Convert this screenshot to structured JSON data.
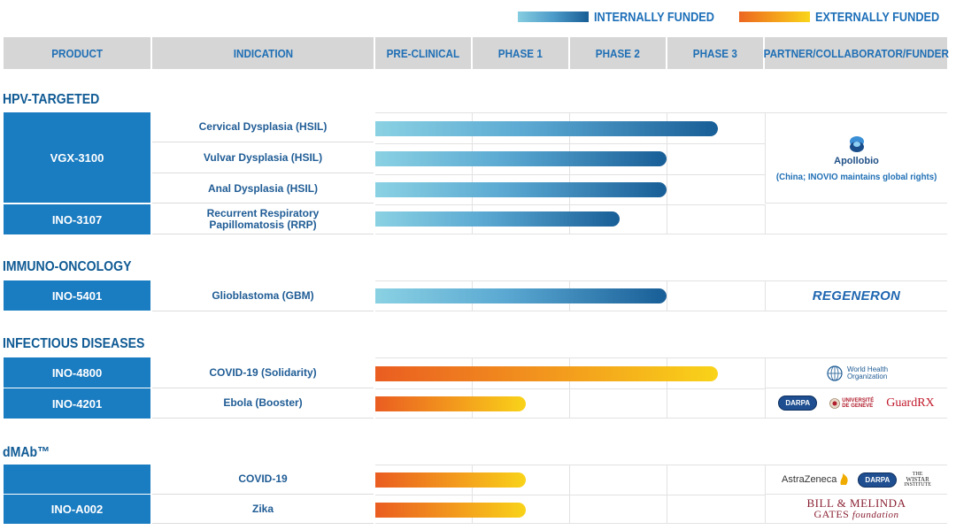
{
  "legend": {
    "internal": {
      "label": "INTERNALLY FUNDED",
      "color_start": "#86cde0",
      "color_end": "#175d95"
    },
    "external": {
      "label": "EXTERNALLY FUNDED",
      "color_start": "#ec6620",
      "color_end": "#f9d51a"
    }
  },
  "headers": {
    "product": "PRODUCT",
    "indication": "INDICATION",
    "preclinical": "PRE-CLINICAL",
    "phase1": "PHASE 1",
    "phase2": "PHASE 2",
    "phase3": "PHASE 3",
    "partner": "PARTNER/COLLABORATOR/FUNDER"
  },
  "sections": {
    "hpv": {
      "title": "HPV-TARGETED",
      "products": [
        "VGX-3100",
        "INO-3107"
      ],
      "rows": [
        {
          "indication": "Cervical Dysplasia (HSIL)",
          "funding": "internal",
          "progress_phases": 3.5
        },
        {
          "indication": "Vulvar Dysplasia (HSIL)",
          "funding": "internal",
          "progress_phases": 3.0
        },
        {
          "indication": "Anal Dysplasia (HSIL)",
          "funding": "internal",
          "progress_phases": 3.0
        },
        {
          "indication_line1": "Recurrent Respiratory",
          "indication_line2": "Papillomatosis (RRP)",
          "funding": "internal",
          "progress_phases": 2.5
        }
      ],
      "partner_name": "Apollobio",
      "partner_note": "(China; INOVIO maintains global rights)"
    },
    "io": {
      "title": "IMMUNO-ONCOLOGY",
      "product": "INO-5401",
      "indication": "Glioblastoma (GBM)",
      "funding": "internal",
      "progress_phases": 3.0,
      "partner": "REGENERON"
    },
    "id": {
      "title": "INFECTIOUS DISEASES",
      "rows": [
        {
          "product": "INO-4800",
          "indication": "COVID-19 (Solidarity)",
          "funding": "external",
          "progress_phases": 3.5,
          "who_line1": "World Health",
          "who_line2": "Organization"
        },
        {
          "product": "INO-4201",
          "indication": "Ebola (Booster)",
          "funding": "external",
          "progress_phases": 1.5,
          "darpa": "DARPA",
          "geneve_line1": "UNIVERSITÉ",
          "geneve_line2": "DE GENÈVE",
          "guardrx": "GuardRX"
        }
      ]
    },
    "dmab": {
      "title": "dMAb™",
      "product": "INO-A002",
      "rows": [
        {
          "indication": "COVID-19",
          "funding": "external",
          "progress_phases": 1.5,
          "astrazeneca": "AstraZeneca",
          "darpa": "DARPA",
          "wistar_line1": "THE",
          "wistar_line2": "WISTAR",
          "wistar_line3": "INSTITUTE"
        },
        {
          "indication": "Zika",
          "funding": "external",
          "progress_phases": 1.5,
          "gates_line1": "BILL & MELINDA",
          "gates_line2a": "GATES",
          "gates_line2b": "foundation"
        }
      ]
    }
  }
}
